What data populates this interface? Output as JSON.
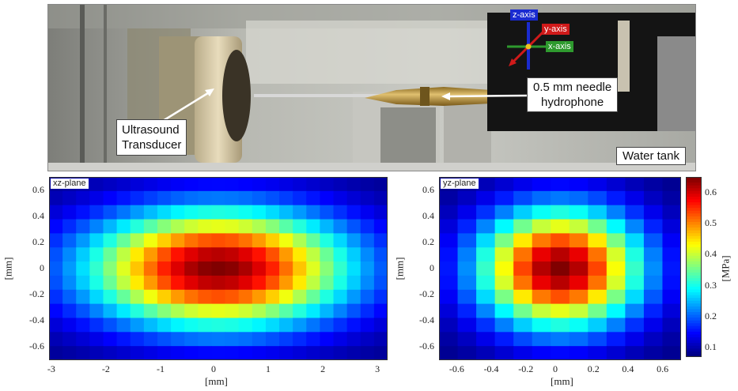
{
  "photo": {
    "labels": {
      "transducer": "Ultrasound\nTransducer",
      "hydrophone": "0.5 mm needle\nhydrophone",
      "tank": "Water tank"
    },
    "axes": {
      "z": "z-axis",
      "y": "y-axis",
      "x": "x-axis"
    },
    "colors": {
      "z": "#1a2bd0",
      "y": "#d01a1a",
      "x": "#2e9a2e"
    }
  },
  "chart_data": [
    {
      "type": "heatmap",
      "plane_label": "xz-plane",
      "xlabel": "[mm]",
      "ylabel": "[mm]",
      "xlim": [
        -3.1,
        3.1
      ],
      "ylim": [
        -0.7,
        0.7
      ],
      "xticks": [
        "-3",
        "-2",
        "-1",
        "0",
        "1",
        "2",
        "3"
      ],
      "yticks": [
        "0.6",
        "0.4",
        "0.2",
        "0",
        "-0.2",
        "-0.4",
        "-0.6"
      ],
      "grid_cols": 25,
      "grid_rows": 13,
      "peak_mpa": 0.65,
      "sigma_x_mm": 1.7,
      "sigma_z_mm": 0.32
    },
    {
      "type": "heatmap",
      "plane_label": "yz-plane",
      "xlabel": "[mm]",
      "ylabel": "[mm]",
      "xlim": [
        -0.7,
        0.7
      ],
      "ylim": [
        -0.7,
        0.7
      ],
      "xticks": [
        "-0.6",
        "-0.4",
        "-0.2",
        "0",
        "0.2",
        "0.4",
        "0.6"
      ],
      "yticks": [
        "0.6",
        "0.4",
        "0.2",
        "0",
        "-0.2",
        "-0.4",
        "-0.6"
      ],
      "grid_cols": 13,
      "grid_rows": 13,
      "peak_mpa": 0.65,
      "sigma_y_mm": 0.33,
      "sigma_z_mm": 0.32
    }
  ],
  "colorbar": {
    "label": "[MPa]",
    "min": 0.07,
    "max": 0.65,
    "ticks": [
      "0.6",
      "0.5",
      "0.4",
      "0.3",
      "0.2",
      "0.1"
    ]
  }
}
